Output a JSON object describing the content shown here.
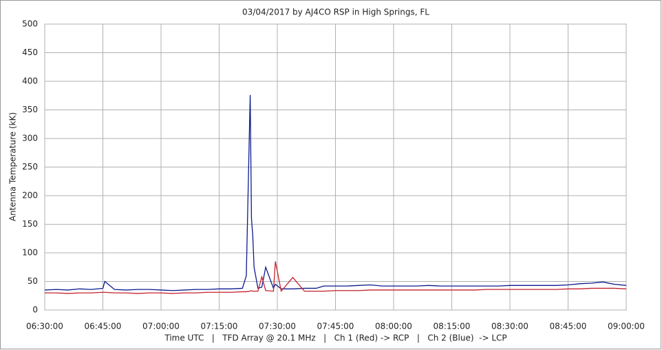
{
  "chart_data": {
    "type": "line",
    "title": "03/04/2017  by  AJ4CO RSP  in  High Springs, FL",
    "x_label": "Time UTC   |   TFD Array @ 20.1 MHz   |   Ch 1 (Red) -> RCP   |   Ch 2 (Blue)  -> LCP",
    "y_label": "Antenna Temperature (kK)",
    "x": [
      "06:30:00",
      "06:33:00",
      "06:36:00",
      "06:39:00",
      "06:42:00",
      "06:45:00",
      "06:45:30",
      "06:48:00",
      "06:51:00",
      "06:54:00",
      "06:57:00",
      "07:00:00",
      "07:03:00",
      "07:06:00",
      "07:09:00",
      "07:12:00",
      "07:15:00",
      "07:18:00",
      "07:21:00",
      "07:22:00",
      "07:23:00",
      "07:23:20",
      "07:23:40",
      "07:24:00",
      "07:25:00",
      "07:26:00",
      "07:27:00",
      "07:29:00",
      "07:29:30",
      "07:31:00",
      "07:34:00",
      "07:37:00",
      "07:40:00",
      "07:42:00",
      "07:45:00",
      "07:48:00",
      "07:51:00",
      "07:54:00",
      "07:57:00",
      "08:00:00",
      "08:03:00",
      "08:06:00",
      "08:09:00",
      "08:12:00",
      "08:15:00",
      "08:18:00",
      "08:21:00",
      "08:24:00",
      "08:27:00",
      "08:30:00",
      "08:33:00",
      "08:36:00",
      "08:39:00",
      "08:42:00",
      "08:45:00",
      "08:48:00",
      "08:51:00",
      "08:54:00",
      "08:57:00",
      "09:00:00"
    ],
    "series": [
      {
        "name": "Ch 2 (Blue)",
        "color": "#0b1a8e",
        "values": [
          35,
          36,
          35,
          37,
          36,
          38,
          50,
          36,
          35,
          36,
          36,
          35,
          34,
          35,
          36,
          36,
          37,
          37,
          38,
          60,
          376,
          160,
          130,
          75,
          38,
          40,
          75,
          38,
          45,
          37,
          37,
          38,
          38,
          42,
          42,
          42,
          43,
          44,
          42,
          42,
          42,
          42,
          43,
          42,
          42,
          42,
          42,
          42,
          42,
          43,
          43,
          43,
          43,
          43,
          44,
          46,
          47,
          49,
          45,
          43
        ]
      },
      {
        "name": "Ch 1 (Red)",
        "color": "#c3202c",
        "values": [
          30,
          30,
          29,
          30,
          30,
          31,
          31,
          30,
          30,
          29,
          30,
          30,
          29,
          30,
          30,
          31,
          31,
          31,
          32,
          32,
          33,
          34,
          33,
          33,
          33,
          58,
          34,
          33,
          85,
          33,
          57,
          33,
          33,
          33,
          34,
          34,
          34,
          35,
          35,
          35,
          35,
          35,
          35,
          35,
          35,
          35,
          35,
          36,
          36,
          36,
          36,
          36,
          36,
          36,
          37,
          37,
          38,
          38,
          38,
          37
        ]
      }
    ],
    "xlim": [
      "06:30:00",
      "09:00:00"
    ],
    "xticks": [
      "06:30:00",
      "06:45:00",
      "07:00:00",
      "07:15:00",
      "07:30:00",
      "07:45:00",
      "08:00:00",
      "08:15:00",
      "08:30:00",
      "08:45:00",
      "09:00:00"
    ],
    "ylim": [
      0,
      500
    ],
    "yticks": [
      0,
      50,
      100,
      150,
      200,
      250,
      300,
      350,
      400,
      450,
      500
    ],
    "grid": true
  }
}
